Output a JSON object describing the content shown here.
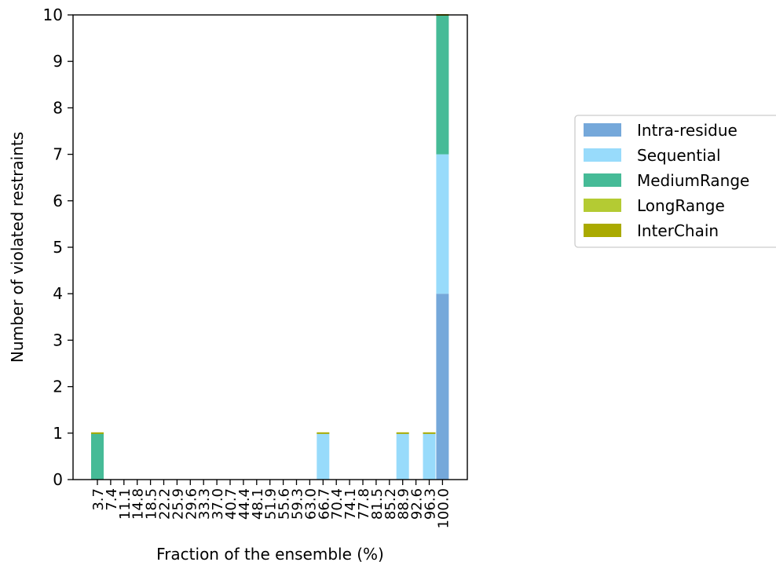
{
  "chart_data": {
    "type": "bar",
    "stacked": true,
    "categories": [
      "3.7",
      "7.4",
      "11.1",
      "14.8",
      "18.5",
      "22.2",
      "25.9",
      "29.6",
      "33.3",
      "37.0",
      "40.7",
      "44.4",
      "48.1",
      "51.9",
      "55.6",
      "59.3",
      "63.0",
      "66.7",
      "70.4",
      "74.1",
      "77.8",
      "81.5",
      "85.2",
      "88.9",
      "92.6",
      "96.3",
      "100.0"
    ],
    "series": [
      {
        "name": "Intra-residue",
        "color": "#75a8da",
        "values": [
          0,
          0,
          0,
          0,
          0,
          0,
          0,
          0,
          0,
          0,
          0,
          0,
          0,
          0,
          0,
          0,
          0,
          0,
          0,
          0,
          0,
          0,
          0,
          0,
          0,
          0,
          4
        ]
      },
      {
        "name": "Sequential",
        "color": "#98dbfb",
        "values": [
          0,
          0,
          0,
          0,
          0,
          0,
          0,
          0,
          0,
          0,
          0,
          0,
          0,
          0,
          0,
          0,
          0,
          1,
          0,
          0,
          0,
          0,
          0,
          1,
          0,
          1,
          3
        ]
      },
      {
        "name": "MediumRange",
        "color": "#46bb97",
        "values": [
          1,
          0,
          0,
          0,
          0,
          0,
          0,
          0,
          0,
          0,
          0,
          0,
          0,
          0,
          0,
          0,
          0,
          0,
          0,
          0,
          0,
          0,
          0,
          0,
          0,
          0,
          3
        ]
      },
      {
        "name": "LongRange",
        "color": "#b4cb33",
        "values": [
          0,
          0,
          0,
          0,
          0,
          0,
          0,
          0,
          0,
          0,
          0,
          0,
          0,
          0,
          0,
          0,
          0,
          0,
          0,
          0,
          0,
          0,
          0,
          0,
          0,
          0,
          0
        ]
      },
      {
        "name": "InterChain",
        "color": "#aaaa00",
        "values": [
          0,
          0,
          0,
          0,
          0,
          0,
          0,
          0,
          0,
          0,
          0,
          0,
          0,
          0,
          0,
          0,
          0,
          0,
          0,
          0,
          0,
          0,
          0,
          0,
          0,
          0,
          0
        ]
      }
    ],
    "xlabel": "Fraction of the ensemble (%)",
    "ylabel": "Number of violated restraints",
    "ylim": [
      0,
      10
    ],
    "yticks": [
      "0",
      "1",
      "2",
      "3",
      "4",
      "5",
      "6",
      "7",
      "8",
      "9",
      "10"
    ],
    "grid": false,
    "legend_placement": "right"
  }
}
